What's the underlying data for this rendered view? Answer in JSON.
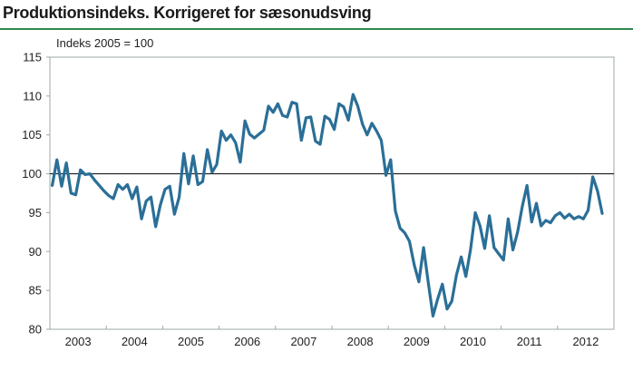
{
  "title": "Produktionsindeks. Korrigeret for sæsonudsving",
  "colors": {
    "line": "#2a6f97",
    "title_rule": "#2f8a4b",
    "frame": "#9ea9a6",
    "reference_line": "#000000"
  },
  "chart_data": {
    "type": "line",
    "title": "Produktionsindeks. Korrigeret for sæsonudsving",
    "unit_label": "Indeks 2005 = 100",
    "xlabel": "",
    "ylabel": "Indeks 2005 = 100",
    "ylim": [
      80,
      115
    ],
    "yticks": [
      80,
      85,
      90,
      95,
      100,
      105,
      110,
      115
    ],
    "xlim": [
      "2003-01",
      "2012-12"
    ],
    "xtick_labels": [
      "2003",
      "2004",
      "2005",
      "2006",
      "2007",
      "2008",
      "2009",
      "2010",
      "2011",
      "2012"
    ],
    "reference_line": 100,
    "grid": false,
    "series": [
      {
        "frequency": "monthly",
        "start": "2003-01",
        "values": [
          98.5,
          101.8,
          98.4,
          101.4,
          97.5,
          97.3,
          100.5,
          99.9,
          100.0,
          99.2,
          98.5,
          97.8,
          97.2,
          96.8,
          98.6,
          98.0,
          98.6,
          96.8,
          98.3,
          94.2,
          96.5,
          97.0,
          93.2,
          96.0,
          98.0,
          98.4,
          94.8,
          97.0,
          102.6,
          98.7,
          102.3,
          98.6,
          99.0,
          103.1,
          100.2,
          101.2,
          105.5,
          104.3,
          105.0,
          104.0,
          101.5,
          106.8,
          105.1,
          104.6,
          105.1,
          105.6,
          108.7,
          107.9,
          109.0,
          107.5,
          107.3,
          109.2,
          109.0,
          104.3,
          107.2,
          107.3,
          104.2,
          103.8,
          107.4,
          107.0,
          105.7,
          109.0,
          108.6,
          106.9,
          110.2,
          108.7,
          106.4,
          105.0,
          106.5,
          105.5,
          104.3,
          99.8,
          101.8,
          95.2,
          93.0,
          92.4,
          91.3,
          88.3,
          86.1,
          90.5,
          86.0,
          81.7,
          83.9,
          85.8,
          82.6,
          83.6,
          87.0,
          89.3,
          86.8,
          90.3,
          95.0,
          93.3,
          90.4,
          94.6,
          90.5,
          89.7,
          88.9,
          94.2,
          90.2,
          92.5,
          95.8,
          98.5,
          93.8,
          96.2,
          93.3,
          94.0,
          93.7,
          94.6,
          95.0,
          94.3,
          94.8,
          94.2,
          94.5,
          94.2,
          95.3,
          99.6,
          97.8,
          94.9
        ]
      }
    ]
  }
}
